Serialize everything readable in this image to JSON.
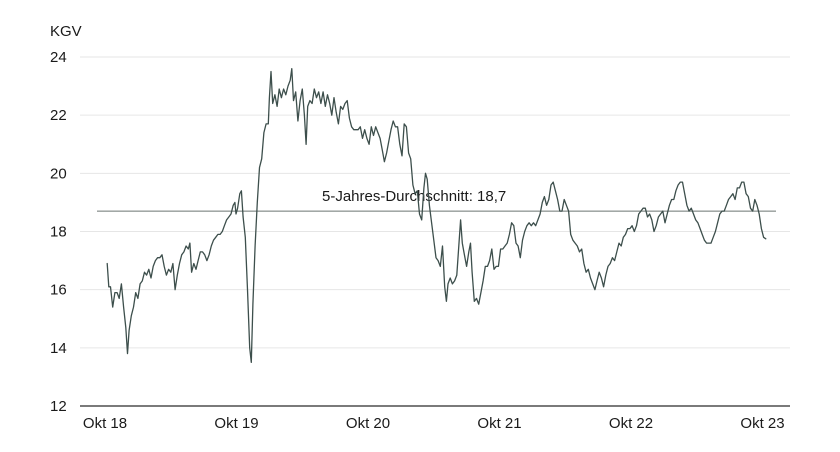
{
  "chart_data": {
    "type": "line",
    "title": "",
    "ylabel": "KGV",
    "xlabel": "",
    "ylim": [
      12,
      24
    ],
    "yticks": [
      "12",
      "14",
      "16",
      "18",
      "20",
      "22",
      "24"
    ],
    "xlim": [
      0,
      60.5
    ],
    "xticks": [
      {
        "pos": 0,
        "label": "Okt 18"
      },
      {
        "pos": 12,
        "label": "Okt 19"
      },
      {
        "pos": 24,
        "label": "Okt 20"
      },
      {
        "pos": 36,
        "label": "Okt 21"
      },
      {
        "pos": 48,
        "label": "Okt 22"
      },
      {
        "pos": 60,
        "label": "Okt 23"
      }
    ],
    "grid": "horizontal",
    "line_color": "#3d4f4c",
    "reference_line": {
      "value": 18.7,
      "label": "5-Jahres-Durchschnitt: 18,7",
      "color": "#6b7471"
    },
    "series": [
      {
        "name": "",
        "points": [
          [
            0.2,
            16.9
          ],
          [
            0.35,
            16.1
          ],
          [
            0.5,
            16.1
          ],
          [
            0.7,
            15.4
          ],
          [
            0.9,
            15.9
          ],
          [
            1.1,
            15.9
          ],
          [
            1.3,
            15.7
          ],
          [
            1.5,
            16.2
          ],
          [
            1.7,
            15.4
          ],
          [
            1.9,
            14.7
          ],
          [
            2.05,
            13.8
          ],
          [
            2.2,
            14.6
          ],
          [
            2.4,
            15.1
          ],
          [
            2.6,
            15.4
          ],
          [
            2.8,
            15.9
          ],
          [
            3.0,
            15.7
          ],
          [
            3.2,
            16.2
          ],
          [
            3.4,
            16.3
          ],
          [
            3.6,
            16.6
          ],
          [
            3.8,
            16.5
          ],
          [
            4.0,
            16.7
          ],
          [
            4.2,
            16.4
          ],
          [
            4.4,
            16.8
          ],
          [
            4.6,
            17.0
          ],
          [
            4.8,
            17.1
          ],
          [
            5.0,
            17.1
          ],
          [
            5.2,
            17.2
          ],
          [
            5.4,
            16.8
          ],
          [
            5.6,
            16.5
          ],
          [
            5.8,
            16.7
          ],
          [
            6.0,
            16.6
          ],
          [
            6.2,
            16.9
          ],
          [
            6.4,
            16.0
          ],
          [
            6.6,
            16.5
          ],
          [
            6.8,
            16.9
          ],
          [
            7.0,
            17.2
          ],
          [
            7.2,
            17.3
          ],
          [
            7.4,
            17.5
          ],
          [
            7.6,
            17.4
          ],
          [
            7.75,
            17.6
          ],
          [
            7.9,
            16.6
          ],
          [
            8.1,
            16.9
          ],
          [
            8.3,
            16.7
          ],
          [
            8.5,
            17.0
          ],
          [
            8.7,
            17.3
          ],
          [
            8.9,
            17.3
          ],
          [
            9.1,
            17.2
          ],
          [
            9.3,
            17.0
          ],
          [
            9.5,
            17.2
          ],
          [
            9.7,
            17.5
          ],
          [
            9.9,
            17.7
          ],
          [
            10.1,
            17.8
          ],
          [
            10.3,
            17.9
          ],
          [
            10.5,
            17.9
          ],
          [
            10.7,
            18.0
          ],
          [
            10.9,
            18.2
          ],
          [
            11.1,
            18.4
          ],
          [
            11.3,
            18.5
          ],
          [
            11.5,
            18.6
          ],
          [
            11.7,
            18.9
          ],
          [
            11.85,
            19.0
          ],
          [
            11.95,
            18.6
          ],
          [
            12.1,
            18.8
          ],
          [
            12.3,
            19.3
          ],
          [
            12.45,
            19.4
          ],
          [
            12.6,
            18.5
          ],
          [
            12.8,
            17.8
          ],
          [
            13.0,
            16.0
          ],
          [
            13.2,
            14.0
          ],
          [
            13.35,
            13.5
          ],
          [
            13.5,
            15.5
          ],
          [
            13.7,
            17.5
          ],
          [
            13.9,
            19.0
          ],
          [
            14.1,
            20.2
          ],
          [
            14.3,
            20.5
          ],
          [
            14.5,
            21.4
          ],
          [
            14.7,
            21.7
          ],
          [
            14.9,
            21.7
          ],
          [
            15.0,
            22.6
          ],
          [
            15.15,
            23.5
          ],
          [
            15.3,
            22.4
          ],
          [
            15.5,
            22.7
          ],
          [
            15.7,
            22.3
          ],
          [
            15.9,
            22.9
          ],
          [
            16.1,
            22.6
          ],
          [
            16.3,
            22.9
          ],
          [
            16.5,
            22.7
          ],
          [
            16.7,
            23.0
          ],
          [
            16.9,
            23.2
          ],
          [
            17.05,
            23.6
          ],
          [
            17.2,
            22.5
          ],
          [
            17.4,
            22.8
          ],
          [
            17.6,
            21.8
          ],
          [
            17.8,
            22.5
          ],
          [
            18.0,
            22.9
          ],
          [
            18.2,
            22.0
          ],
          [
            18.35,
            21.0
          ],
          [
            18.5,
            22.3
          ],
          [
            18.7,
            22.5
          ],
          [
            18.9,
            22.4
          ],
          [
            19.1,
            22.9
          ],
          [
            19.3,
            22.6
          ],
          [
            19.5,
            22.8
          ],
          [
            19.7,
            22.4
          ],
          [
            19.9,
            22.8
          ],
          [
            20.1,
            22.3
          ],
          [
            20.3,
            22.7
          ],
          [
            20.5,
            22.4
          ],
          [
            20.7,
            22.0
          ],
          [
            20.9,
            22.6
          ],
          [
            21.1,
            22.1
          ],
          [
            21.3,
            21.7
          ],
          [
            21.5,
            22.3
          ],
          [
            21.7,
            22.2
          ],
          [
            21.9,
            22.4
          ],
          [
            22.1,
            22.5
          ],
          [
            22.3,
            21.9
          ],
          [
            22.5,
            21.6
          ],
          [
            22.7,
            21.5
          ],
          [
            22.9,
            21.5
          ],
          [
            23.1,
            21.5
          ],
          [
            23.3,
            21.6
          ],
          [
            23.5,
            21.2
          ],
          [
            23.7,
            21.5
          ],
          [
            23.9,
            21.2
          ],
          [
            24.1,
            21.0
          ],
          [
            24.3,
            21.6
          ],
          [
            24.5,
            21.3
          ],
          [
            24.7,
            21.6
          ],
          [
            24.9,
            21.4
          ],
          [
            25.1,
            21.2
          ],
          [
            25.3,
            20.8
          ],
          [
            25.5,
            20.4
          ],
          [
            25.7,
            20.7
          ],
          [
            25.9,
            21.1
          ],
          [
            26.1,
            21.5
          ],
          [
            26.3,
            21.8
          ],
          [
            26.5,
            21.6
          ],
          [
            26.7,
            21.6
          ],
          [
            26.9,
            21.0
          ],
          [
            27.1,
            20.6
          ],
          [
            27.3,
            21.7
          ],
          [
            27.5,
            21.6
          ],
          [
            27.7,
            20.7
          ],
          [
            27.9,
            20.5
          ],
          [
            28.1,
            19.6
          ],
          [
            28.3,
            19.3
          ],
          [
            28.5,
            19.4
          ],
          [
            28.7,
            18.6
          ],
          [
            28.9,
            18.4
          ],
          [
            29.1,
            19.5
          ],
          [
            29.25,
            20.0
          ],
          [
            29.4,
            19.8
          ],
          [
            29.6,
            18.9
          ],
          [
            29.8,
            18.3
          ],
          [
            30.0,
            17.7
          ],
          [
            30.2,
            17.1
          ],
          [
            30.4,
            17.0
          ],
          [
            30.6,
            16.8
          ],
          [
            30.8,
            17.5
          ],
          [
            31.0,
            16.1
          ],
          [
            31.15,
            15.6
          ],
          [
            31.3,
            16.2
          ],
          [
            31.5,
            16.4
          ],
          [
            31.7,
            16.2
          ],
          [
            31.9,
            16.3
          ],
          [
            32.1,
            16.5
          ],
          [
            32.3,
            17.6
          ],
          [
            32.45,
            18.4
          ],
          [
            32.6,
            17.6
          ],
          [
            32.8,
            17.2
          ],
          [
            33.0,
            16.8
          ],
          [
            33.2,
            17.3
          ],
          [
            33.35,
            17.6
          ],
          [
            33.5,
            16.6
          ],
          [
            33.7,
            15.6
          ],
          [
            33.9,
            15.7
          ],
          [
            34.1,
            15.5
          ],
          [
            34.3,
            15.9
          ],
          [
            34.5,
            16.3
          ],
          [
            34.7,
            16.8
          ],
          [
            34.9,
            16.8
          ],
          [
            35.1,
            17.0
          ],
          [
            35.3,
            17.4
          ],
          [
            35.5,
            16.7
          ],
          [
            35.7,
            16.8
          ],
          [
            35.9,
            16.8
          ],
          [
            36.1,
            17.4
          ],
          [
            36.3,
            17.4
          ],
          [
            36.5,
            17.5
          ],
          [
            36.7,
            17.6
          ],
          [
            36.9,
            17.9
          ],
          [
            37.1,
            18.3
          ],
          [
            37.3,
            18.2
          ],
          [
            37.5,
            17.6
          ],
          [
            37.7,
            17.5
          ],
          [
            37.9,
            17.1
          ],
          [
            38.1,
            17.7
          ],
          [
            38.3,
            18.0
          ],
          [
            38.5,
            18.2
          ],
          [
            38.7,
            18.3
          ],
          [
            38.9,
            18.2
          ],
          [
            39.1,
            18.3
          ],
          [
            39.3,
            18.2
          ],
          [
            39.5,
            18.4
          ],
          [
            39.7,
            18.6
          ],
          [
            39.9,
            19.0
          ],
          [
            40.1,
            19.2
          ],
          [
            40.3,
            18.9
          ],
          [
            40.5,
            19.1
          ],
          [
            40.7,
            19.6
          ],
          [
            40.9,
            19.7
          ],
          [
            41.1,
            19.4
          ],
          [
            41.3,
            19.1
          ],
          [
            41.5,
            18.7
          ],
          [
            41.7,
            18.7
          ],
          [
            41.9,
            19.1
          ],
          [
            42.1,
            18.9
          ],
          [
            42.3,
            18.7
          ],
          [
            42.5,
            17.9
          ],
          [
            42.7,
            17.7
          ],
          [
            42.9,
            17.6
          ],
          [
            43.1,
            17.5
          ],
          [
            43.3,
            17.3
          ],
          [
            43.5,
            17.4
          ],
          [
            43.7,
            16.9
          ],
          [
            43.9,
            16.6
          ],
          [
            44.1,
            16.7
          ],
          [
            44.3,
            16.4
          ],
          [
            44.5,
            16.2
          ],
          [
            44.7,
            16.0
          ],
          [
            44.9,
            16.3
          ],
          [
            45.1,
            16.6
          ],
          [
            45.3,
            16.4
          ],
          [
            45.5,
            16.1
          ],
          [
            45.7,
            16.5
          ],
          [
            45.9,
            16.8
          ],
          [
            46.1,
            16.9
          ],
          [
            46.3,
            17.1
          ],
          [
            46.5,
            17.0
          ],
          [
            46.7,
            17.3
          ],
          [
            46.9,
            17.6
          ],
          [
            47.1,
            17.5
          ],
          [
            47.3,
            17.8
          ],
          [
            47.5,
            17.9
          ],
          [
            47.7,
            18.1
          ],
          [
            47.9,
            18.1
          ],
          [
            48.1,
            18.2
          ],
          [
            48.3,
            18.0
          ],
          [
            48.5,
            18.2
          ],
          [
            48.7,
            18.6
          ],
          [
            48.9,
            18.7
          ],
          [
            49.1,
            18.8
          ],
          [
            49.3,
            18.8
          ],
          [
            49.5,
            18.5
          ],
          [
            49.7,
            18.6
          ],
          [
            49.9,
            18.4
          ],
          [
            50.1,
            18.0
          ],
          [
            50.3,
            18.2
          ],
          [
            50.5,
            18.5
          ],
          [
            50.7,
            18.6
          ],
          [
            50.9,
            18.7
          ],
          [
            51.1,
            18.3
          ],
          [
            51.3,
            18.6
          ],
          [
            51.5,
            18.9
          ],
          [
            51.7,
            19.1
          ],
          [
            51.9,
            19.1
          ],
          [
            52.1,
            19.4
          ],
          [
            52.3,
            19.6
          ],
          [
            52.5,
            19.7
          ],
          [
            52.7,
            19.7
          ],
          [
            52.9,
            19.3
          ],
          [
            53.1,
            18.9
          ],
          [
            53.3,
            18.7
          ],
          [
            53.5,
            18.8
          ],
          [
            53.7,
            18.6
          ],
          [
            53.9,
            18.4
          ],
          [
            54.1,
            18.3
          ],
          [
            54.3,
            18.1
          ],
          [
            54.5,
            17.9
          ],
          [
            54.7,
            17.7
          ],
          [
            54.9,
            17.6
          ],
          [
            55.1,
            17.6
          ],
          [
            55.3,
            17.6
          ],
          [
            55.5,
            17.8
          ],
          [
            55.7,
            18.0
          ],
          [
            55.9,
            18.3
          ],
          [
            56.1,
            18.6
          ],
          [
            56.3,
            18.7
          ],
          [
            56.5,
            18.7
          ],
          [
            56.7,
            18.9
          ],
          [
            56.9,
            19.1
          ],
          [
            57.1,
            19.2
          ],
          [
            57.3,
            19.3
          ],
          [
            57.5,
            19.1
          ],
          [
            57.7,
            19.5
          ],
          [
            57.9,
            19.5
          ],
          [
            58.1,
            19.7
          ],
          [
            58.3,
            19.7
          ],
          [
            58.5,
            19.3
          ],
          [
            58.7,
            19.2
          ],
          [
            58.9,
            18.8
          ],
          [
            59.1,
            18.7
          ],
          [
            59.3,
            19.1
          ],
          [
            59.5,
            18.9
          ],
          [
            59.7,
            18.6
          ],
          [
            59.9,
            18.1
          ],
          [
            60.1,
            17.8
          ],
          [
            60.3,
            17.75
          ]
        ]
      }
    ]
  }
}
